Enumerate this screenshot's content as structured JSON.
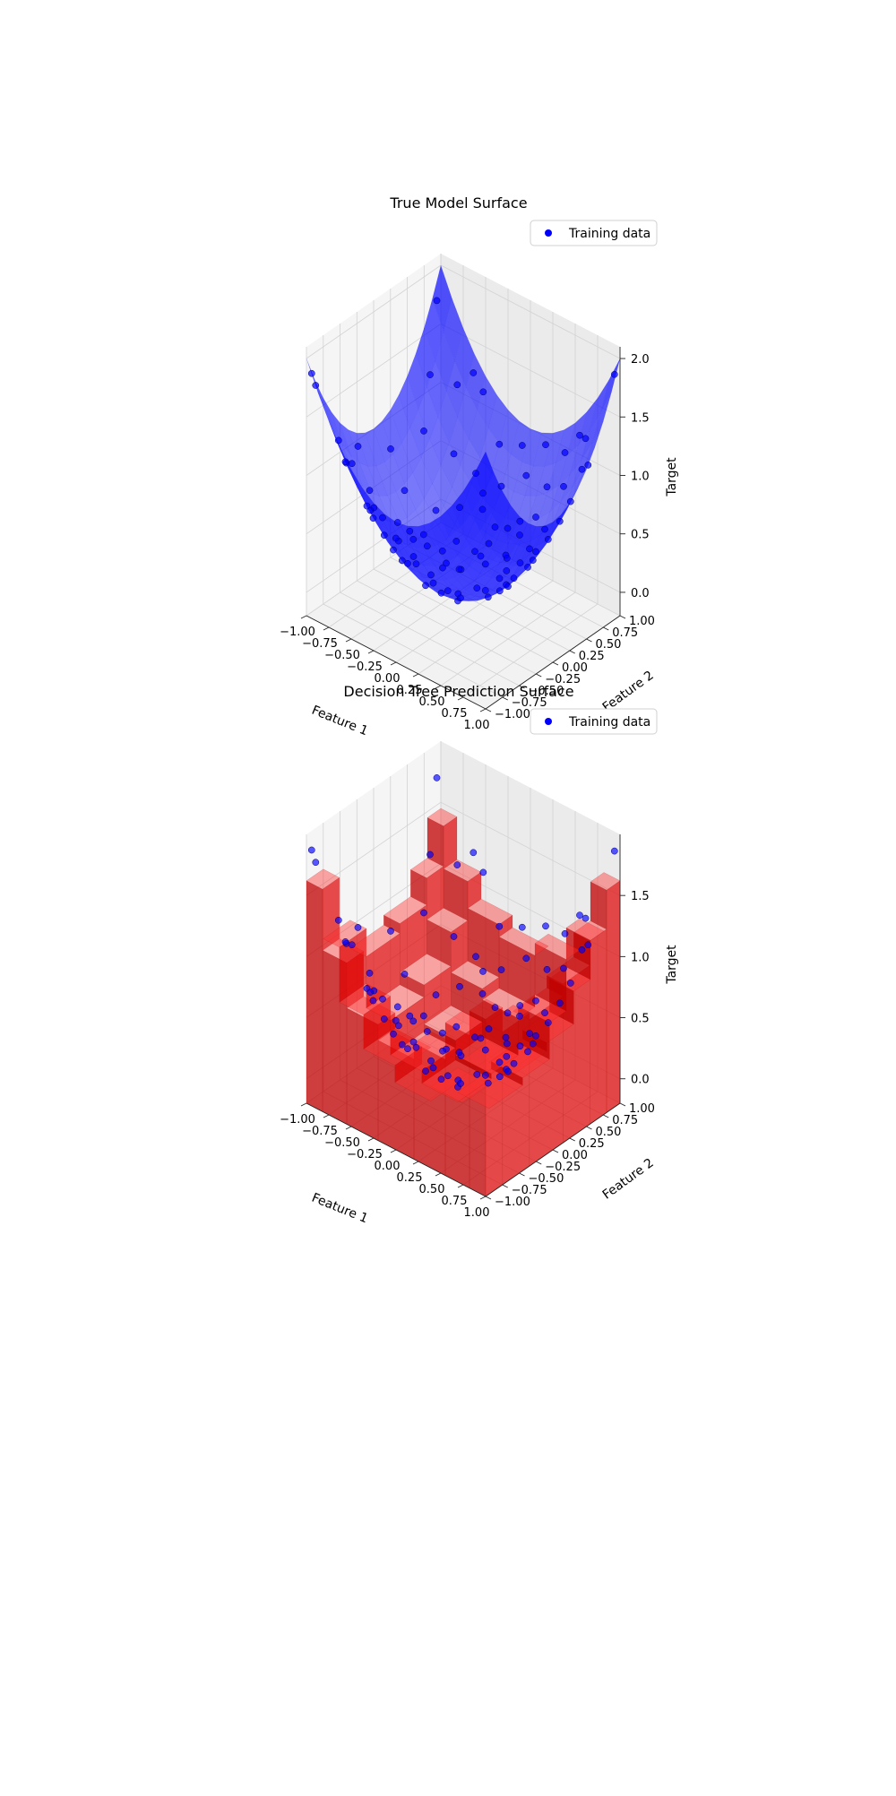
{
  "chart_data": [
    {
      "type": "surface3d",
      "title": "True Model Surface",
      "xlabel": "Feature 1",
      "ylabel": "Feature 2",
      "zlabel": "Target",
      "xlim": [
        -1,
        1
      ],
      "ylim": [
        -1,
        1
      ],
      "zlim": [
        -0.2,
        2.1
      ],
      "xticks": [
        "−1.00",
        "−0.75",
        "−0.50",
        "−0.25",
        "0.00",
        "0.25",
        "0.50",
        "0.75",
        "1.00"
      ],
      "yticks": [
        "−1.00",
        "−0.75",
        "−0.50",
        "−0.25",
        "0.00",
        "0.25",
        "0.50",
        "0.75",
        "1.00"
      ],
      "zticks": [
        "0.0",
        "0.5",
        "1.0",
        "1.5",
        "2.0"
      ],
      "surface_model": "x^2 + y^2",
      "surface_color": "#0000ff",
      "scatter_color": "#0000ff",
      "legend": "Training data",
      "legend_loc": "upper right",
      "grid": true
    },
    {
      "type": "surface3d",
      "title": "Decision Tree Prediction Surface",
      "xlabel": "Feature 1",
      "ylabel": "Feature 2",
      "zlabel": "Target",
      "xlim": [
        -1,
        1
      ],
      "ylim": [
        -1,
        1
      ],
      "zlim": [
        -0.2,
        2.0
      ],
      "xticks": [
        "−1.00",
        "−0.75",
        "−0.50",
        "−0.25",
        "0.00",
        "0.25",
        "0.50",
        "0.75",
        "1.00"
      ],
      "yticks": [
        "−1.00",
        "−0.75",
        "−0.50",
        "−0.25",
        "0.00",
        "0.25",
        "0.50",
        "0.75",
        "1.00"
      ],
      "zticks": [
        "0.0",
        "0.5",
        "1.0",
        "1.5"
      ],
      "surface_model": "step-wise decision tree approximation of x^2 + y^2",
      "surface_color": "#ff0000",
      "scatter_color": "#0000ff",
      "legend": "Training data",
      "legend_loc": "upper right",
      "grid": true
    }
  ],
  "training_data": [
    [
      -0.98,
      -0.95,
      1.86
    ],
    [
      -0.92,
      -0.97,
      1.79
    ],
    [
      -0.86,
      -0.71,
      1.24
    ],
    [
      -0.83,
      -0.55,
      0.99
    ],
    [
      -0.72,
      -0.78,
      1.13
    ],
    [
      -0.76,
      -0.38,
      0.72
    ],
    [
      -0.66,
      -0.45,
      0.64
    ],
    [
      -0.58,
      -0.66,
      0.77
    ],
    [
      -0.62,
      -0.15,
      0.41
    ],
    [
      -0.52,
      -0.27,
      0.34
    ],
    [
      -0.47,
      -0.55,
      0.52
    ],
    [
      -0.44,
      0.05,
      0.2
    ],
    [
      -0.4,
      -0.85,
      0.88
    ],
    [
      -0.35,
      -0.36,
      0.25
    ],
    [
      -0.31,
      0.31,
      0.19
    ],
    [
      -0.27,
      -0.12,
      0.09
    ],
    [
      -0.21,
      -0.63,
      0.44
    ],
    [
      -0.16,
      0.18,
      0.06
    ],
    [
      -0.12,
      -0.4,
      0.17
    ],
    [
      -0.06,
      0.46,
      0.21
    ],
    [
      -0.02,
      -0.05,
      0.0
    ],
    [
      0.03,
      -0.74,
      0.55
    ],
    [
      0.07,
      0.11,
      0.02
    ],
    [
      0.12,
      -0.24,
      0.07
    ],
    [
      0.16,
      0.63,
      0.42
    ],
    [
      0.21,
      -0.51,
      0.3
    ],
    [
      0.25,
      0.31,
      0.16
    ],
    [
      0.3,
      -0.03,
      0.09
    ],
    [
      0.35,
      0.78,
      0.73
    ],
    [
      0.39,
      -0.83,
      0.84
    ],
    [
      0.43,
      0.18,
      0.22
    ],
    [
      0.48,
      -0.31,
      0.33
    ],
    [
      0.52,
      0.52,
      0.54
    ],
    [
      0.57,
      -0.12,
      0.34
    ],
    [
      0.61,
      0.92,
      1.22
    ],
    [
      0.66,
      -0.62,
      0.82
    ],
    [
      0.7,
      0.33,
      0.6
    ],
    [
      0.74,
      0.05,
      0.55
    ],
    [
      0.79,
      -0.42,
      0.8
    ],
    [
      0.83,
      0.66,
      1.12
    ],
    [
      0.88,
      -0.88,
      1.55
    ],
    [
      0.92,
      0.21,
      0.89
    ],
    [
      0.96,
      0.97,
      1.86
    ],
    [
      -0.9,
      0.12,
      0.82
    ],
    [
      -0.8,
      0.48,
      0.87
    ],
    [
      -0.69,
      0.83,
      1.17
    ],
    [
      -0.57,
      0.62,
      0.71
    ],
    [
      -0.49,
      0.95,
      1.14
    ],
    [
      -0.37,
      0.68,
      0.6
    ],
    [
      -0.25,
      0.87,
      0.82
    ],
    [
      -0.13,
      0.74,
      0.56
    ],
    [
      -0.04,
      0.93,
      0.87
    ],
    [
      0.08,
      0.83,
      0.7
    ],
    [
      0.2,
      0.96,
      0.96
    ],
    [
      0.46,
      0.9,
      1.02
    ],
    [
      0.58,
      0.72,
      0.85
    ],
    [
      0.72,
      0.86,
      1.26
    ],
    [
      0.86,
      0.45,
      0.94
    ],
    [
      -0.95,
      -0.3,
      0.99
    ],
    [
      -0.88,
      0.68,
      1.24
    ],
    [
      -0.73,
      0.1,
      0.54
    ],
    [
      -0.64,
      -0.9,
      1.22
    ],
    [
      -0.53,
      0.3,
      0.37
    ],
    [
      -0.45,
      -0.74,
      0.75
    ],
    [
      -0.33,
      -0.6,
      0.47
    ],
    [
      -0.22,
      0.58,
      0.39
    ],
    [
      -0.1,
      -0.87,
      0.77
    ],
    [
      0.0,
      0.33,
      0.11
    ],
    [
      0.1,
      -0.58,
      0.35
    ],
    [
      0.18,
      0.41,
      0.2
    ],
    [
      0.27,
      -0.95,
      0.98
    ],
    [
      0.37,
      0.05,
      0.14
    ],
    [
      0.45,
      -0.66,
      0.64
    ],
    [
      0.54,
      0.36,
      0.42
    ],
    [
      0.63,
      -0.3,
      0.49
    ],
    [
      0.68,
      -0.96,
      1.38
    ],
    [
      0.77,
      -0.18,
      0.63
    ],
    [
      0.85,
      -0.66,
      1.16
    ],
    [
      0.93,
      -0.4,
      1.02
    ],
    [
      0.98,
      0.55,
      1.26
    ],
    [
      -0.97,
      0.9,
      1.75
    ],
    [
      -0.6,
      0.95,
      1.26
    ],
    [
      -0.18,
      -0.96,
      0.95
    ],
    [
      0.14,
      -0.93,
      0.88
    ],
    [
      0.33,
      0.64,
      0.52
    ],
    [
      0.5,
      0.0,
      0.25
    ],
    [
      -0.08,
      -0.22,
      0.05
    ],
    [
      -0.28,
      0.12,
      0.09
    ],
    [
      0.06,
      0.58,
      0.34
    ],
    [
      -0.42,
      -0.18,
      0.21
    ],
    [
      0.24,
      -0.36,
      0.19
    ],
    [
      0.41,
      0.44,
      0.36
    ],
    [
      -0.56,
      -0.05,
      0.32
    ],
    [
      0.6,
      0.16,
      0.39
    ],
    [
      -0.14,
      0.36,
      0.15
    ],
    [
      0.31,
      -0.72,
      0.62
    ]
  ],
  "tree_prediction": {
    "x_splits": [
      -1.0,
      -0.82,
      -0.55,
      -0.2,
      0.2,
      0.55,
      0.82,
      1.0
    ],
    "y_splits": [
      -1.0,
      -0.75,
      -0.35,
      0.15,
      0.55,
      0.8,
      1.0
    ],
    "values": [
      [
        1.62,
        1.05,
        0.82,
        0.9,
        1.12,
        1.45
      ],
      [
        1.12,
        0.6,
        0.4,
        0.5,
        0.78,
        1.1
      ],
      [
        0.75,
        0.32,
        0.12,
        0.18,
        0.45,
        0.88
      ],
      [
        0.62,
        0.18,
        0.02,
        0.06,
        0.36,
        0.78
      ],
      [
        0.75,
        0.3,
        0.1,
        0.16,
        0.46,
        0.88
      ],
      [
        1.05,
        0.65,
        0.48,
        0.55,
        0.82,
        1.14
      ],
      [
        1.25,
        1.05,
        1.0,
        1.1,
        1.3,
        1.62
      ]
    ]
  }
}
